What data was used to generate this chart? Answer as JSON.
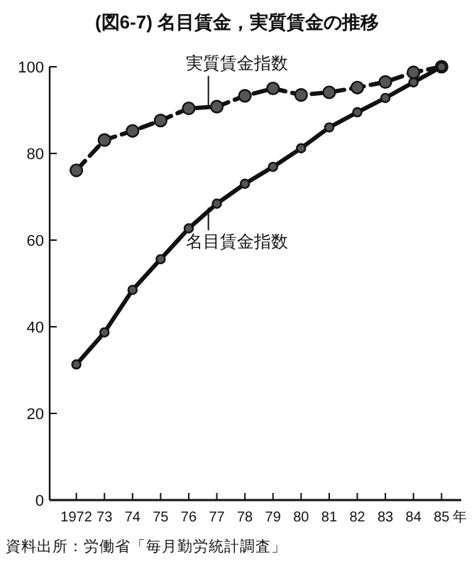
{
  "chart_data": {
    "type": "line",
    "title": "(図6-7) 名目賃金，実質賃金の推移",
    "x": [
      1972,
      1973,
      1974,
      1975,
      1976,
      1977,
      1978,
      1979,
      1980,
      1981,
      1982,
      1983,
      1984,
      1985
    ],
    "series": [
      {
        "color": "#111111",
        "line_style": "dashed",
        "values": [
          76.1,
          83.1,
          85.2,
          87.6,
          90.4,
          90.8,
          93.3,
          95.0,
          93.5,
          94.1,
          95.2,
          96.5,
          98.7,
          100
        ]
      },
      {
        "color": "#111111",
        "line_style": "solid",
        "values": [
          31.3,
          38.7,
          48.5,
          55.6,
          62.7,
          68.4,
          73.0,
          76.9,
          81.2,
          86.0,
          89.5,
          92.8,
          96.4,
          100
        ]
      }
    ],
    "marker": "circle",
    "xlim": [
      1971.05,
      1985.7
    ],
    "xticks": [
      {
        "value": 1972,
        "label": "1972"
      },
      {
        "value": 1973,
        "label": "73"
      },
      {
        "value": 1974,
        "label": "74"
      },
      {
        "value": 1975,
        "label": "75"
      },
      {
        "value": 1976,
        "label": "76"
      },
      {
        "value": 1977,
        "label": "77"
      },
      {
        "value": 1978,
        "label": "78"
      },
      {
        "value": 1979,
        "label": "79"
      },
      {
        "value": 1980,
        "label": "80"
      },
      {
        "value": 1981,
        "label": "81"
      },
      {
        "value": 1982,
        "label": "82"
      },
      {
        "value": 1983,
        "label": "83"
      },
      {
        "value": 1984,
        "label": "84"
      },
      {
        "value": 1985,
        "label": "85"
      }
    ],
    "xlabel": "年",
    "ylim": [
      0,
      100
    ],
    "yticks": [
      0,
      20,
      40,
      60,
      80,
      100
    ],
    "grid": false,
    "annotations": [
      {
        "text": "実質賃金指数",
        "x": 1976.7,
        "y": 90.7
      },
      {
        "text": "名目賃金指数",
        "x": 1976.7,
        "y": 67.5
      },
      "資料出所：労働省「毎月勤労統計調査」"
    ]
  }
}
